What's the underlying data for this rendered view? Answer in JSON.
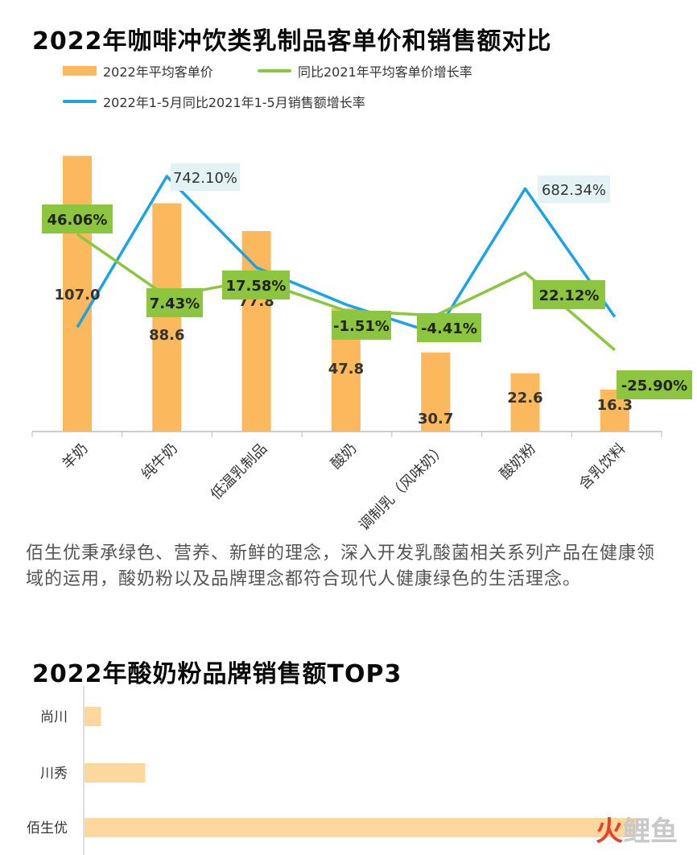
{
  "title": "2022年咖啡冲饮类乳制品客单价和销售额对比",
  "legend": {
    "bar": "2022年平均客单价",
    "green": "同比2021年平均客单价增长率",
    "blue": "2022年1-5月同比2021年1-5月销售额增长率"
  },
  "colors": {
    "bar": "#fbb85c",
    "green": "#8cc63f",
    "blue": "#1aa3e8",
    "label_bg_green": "#8cc63f",
    "label_bg_blue": "#e3f2f3"
  },
  "chart_data": [
    {
      "type": "bar",
      "title": "2022年咖啡冲饮类乳制品客单价和销售额对比",
      "categories": [
        "羊奶",
        "纯牛奶",
        "低温乳制品",
        "酸奶",
        "调制乳（风味奶）",
        "酸奶粉",
        "含乳饮料"
      ],
      "series": [
        {
          "name": "2022年平均客单价",
          "type": "bar",
          "values": [
            107.0,
            88.6,
            77.8,
            47.8,
            30.7,
            22.6,
            16.3
          ],
          "labels": [
            "107.0",
            "88.6",
            "77.8",
            "47.8",
            "30.7",
            "22.6",
            "16.3"
          ]
        },
        {
          "name": "同比2021年平均客单价增长率",
          "type": "line",
          "values": [
            46.06,
            7.43,
            17.58,
            -1.51,
            -4.41,
            22.12,
            -25.9
          ],
          "labels": [
            "46.06%",
            "7.43%",
            "17.58%",
            "-1.51%",
            "-4.41%",
            "22.12%",
            "-25.90%"
          ]
        },
        {
          "name": "2022年1-5月同比2021年1-5月销售额增长率",
          "type": "line",
          "values": [
            10,
            742.1,
            300,
            120,
            -20,
            682.34,
            60
          ],
          "labels": [
            "",
            "742.10%",
            "",
            "",
            "",
            "682.34%",
            ""
          ]
        }
      ],
      "legend": "top-left",
      "grid": false
    },
    {
      "type": "bar",
      "orientation": "horizontal",
      "title": "2022年酸奶粉品牌销售额TOP3",
      "categories": [
        "尚川",
        "川秀",
        "佰生优"
      ],
      "values": [
        3,
        11,
        100
      ]
    }
  ],
  "paragraph": "佰生优秉承绿色、营养、新鲜的理念，深入开发乳酸菌相关系列产品在健康领域的运用，酸奶粉以及品牌理念都符合现代人健康绿色的生活理念。",
  "title2": "2022年酸奶粉品牌销售额TOP3",
  "watermark": {
    "part1": "火",
    "part2": "鲤鱼"
  }
}
